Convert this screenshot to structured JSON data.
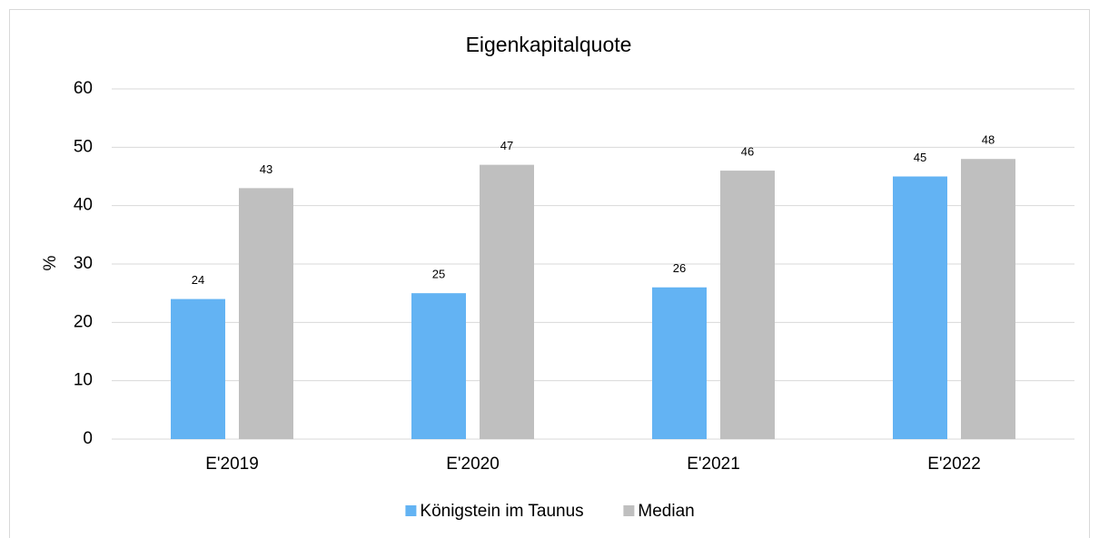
{
  "chart_data": {
    "type": "bar",
    "title": "Eigenkapitalquote",
    "y_label": "%",
    "categories": [
      "E'2019",
      "E'2020",
      "E'2021",
      "E'2022"
    ],
    "series": [
      {
        "name": "Königstein im Taunus",
        "color": "#63b3f3",
        "values": [
          24,
          25,
          26,
          45
        ]
      },
      {
        "name": "Median",
        "color": "#bfbfbf",
        "values": [
          43,
          47,
          46,
          48
        ]
      }
    ],
    "ylim": [
      0,
      60
    ],
    "yticks": [
      0,
      10,
      20,
      30,
      40,
      50,
      60
    ],
    "grid": true,
    "legend": "bottom"
  }
}
